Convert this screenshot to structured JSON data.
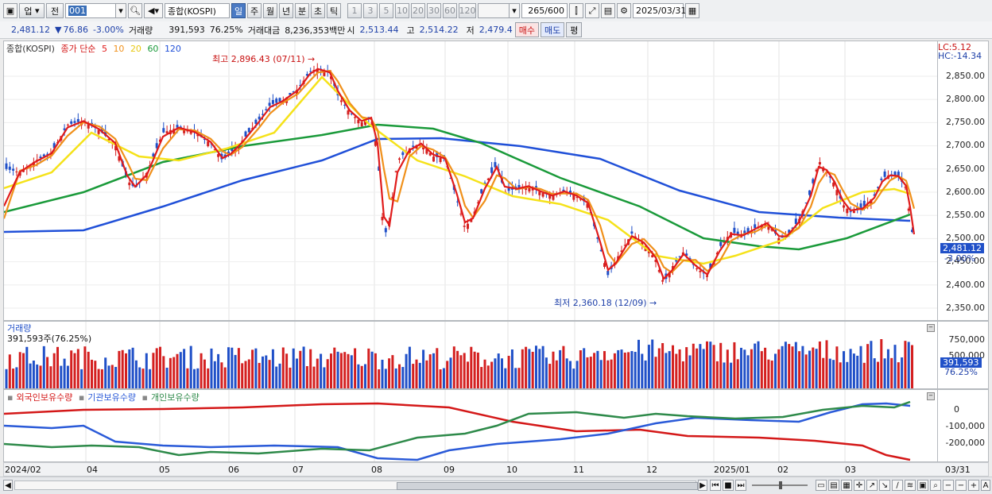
{
  "toolbar": {
    "market": "업",
    "scope": "전",
    "code": "001",
    "name": "종합(KOSPI)",
    "periods": [
      "일",
      "주",
      "월",
      "년",
      "분",
      "초",
      "틱"
    ],
    "selected_period": "일",
    "intervals": [
      "1",
      "3",
      "5",
      "10",
      "20",
      "30",
      "60",
      "120"
    ],
    "count": "265",
    "count_max": "/600",
    "date": "2025/03/31"
  },
  "info": {
    "price": "2,481.12",
    "change_arrow": "▼",
    "change": "76.86",
    "change_pct": "-3.00%",
    "volume_label": "거래량",
    "volume": "391,593",
    "volume_ratio": "76.25%",
    "amount_label": "거래대금",
    "amount": "8,236,353백만",
    "open_label": "시",
    "open": "2,513.44",
    "high_label": "고",
    "high": "2,514.22",
    "low_label": "저",
    "low": "2,479.4",
    "buy_btn": "매수",
    "sell_btn": "매도",
    "eval_btn": "평"
  },
  "price_panel": {
    "title": "종합(KOSPI)",
    "ma_label": "종가 단순",
    "ma_periods": [
      "5",
      "10",
      "20",
      "60",
      "120"
    ],
    "ma_colors": [
      "#e01b1b",
      "#f0901a",
      "#f5e21a",
      "#1a9a3a",
      "#2050d8"
    ],
    "high_note": "최고 2,896.43 (07/11)",
    "low_note": "최저 2,360.18 (12/09)",
    "lc": "LC:5.12",
    "hc": "HC:-14.34",
    "y_ticks": [
      "2,850.00",
      "2,800.00",
      "2,750.00",
      "2,700.00",
      "2,650.00",
      "2,600.00",
      "2,550.00",
      "2,500.00",
      "2,450.00",
      "2,400.00",
      "2,350.00"
    ],
    "last_tag": "2,481.12",
    "last_pct": "-3.00%"
  },
  "volume_panel": {
    "title": "거래량",
    "value": "391,593주(76.25%)",
    "y_ticks": [
      "750,000",
      "500,000"
    ],
    "last_tag": "391,593",
    "last_pct": "76.25%",
    "up_color": "#d42020",
    "down_color": "#2050c8"
  },
  "holding_panel": {
    "series": [
      {
        "name": "외국인보유수량",
        "color": "#d41818"
      },
      {
        "name": "기관보유수량",
        "color": "#2a5ad8"
      },
      {
        "name": "개인보유수량",
        "color": "#2e8a4a"
      }
    ],
    "y_ticks": [
      "0",
      "-100,000",
      "-200,000"
    ]
  },
  "dates": [
    "2024/02",
    "04",
    "05",
    "06",
    "07",
    "08",
    "09",
    "10",
    "11",
    "12",
    "2025/01",
    "02",
    "03",
    "03/31"
  ]
}
